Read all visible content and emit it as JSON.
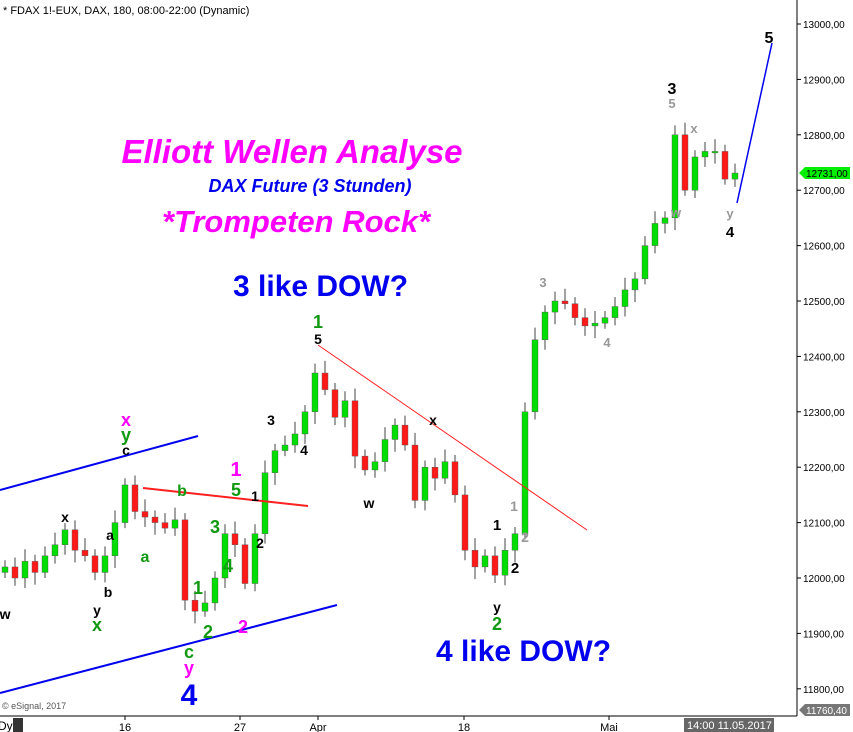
{
  "header": {
    "title": "* FDAX 1!-EUX, DAX, 180, 08:00-22:00 (Dynamic)"
  },
  "footer": {
    "copyright": "© eSignal, 2017",
    "dyn": "Dyn",
    "datetime": "14:00 11.05.2017"
  },
  "annotations": {
    "title": "Elliott Wellen Analyse",
    "subtitle": "DAX Future (3 Stunden)",
    "tagline": "*Trompeten Rock*",
    "note1": "3 like DOW?",
    "note2": "4 like DOW?"
  },
  "colors": {
    "up": "#00dd00",
    "down": "#ff1a1a",
    "magenta": "#ff00ff",
    "blue": "#0000ee",
    "green": "#119911",
    "grey": "#999999",
    "red_line": "#ff2020"
  },
  "wave_labels": [
    "x",
    "y",
    "c",
    "x",
    "a",
    "b",
    "y",
    "x",
    "a",
    "w",
    "b",
    "1",
    "5",
    "1",
    "3",
    "4",
    "1",
    "2",
    "2",
    "2",
    "c",
    "y",
    "4",
    "3",
    "4",
    "1",
    "5",
    "w",
    "x",
    "1",
    "2",
    "y",
    "2",
    "1",
    "2",
    "3",
    "4",
    "3",
    "5",
    "x",
    "w",
    "y",
    "4",
    "5"
  ],
  "chart_data": {
    "type": "candlestick",
    "symbol": "FDAX 1!-EUX",
    "y_ticks": [
      13000,
      12900,
      12800,
      12700,
      12600,
      12500,
      12400,
      12300,
      12200,
      12100,
      12000,
      11900,
      11800
    ],
    "y_tick_labels": [
      "13000,00",
      "12900,00",
      "12800,00",
      "12700,00",
      "12600,00",
      "12500,00",
      "12400,00",
      "12300,00",
      "12200,00",
      "12100,00",
      "12000,00",
      "11900,00",
      "11800,00"
    ],
    "ylim": [
      11760.4,
      13040
    ],
    "last_price": "12731,00",
    "low_marker": "11760,40",
    "x_tick_labels": [
      "16",
      "27",
      "Apr",
      "18",
      "Mai"
    ],
    "closes": [
      12020,
      12000,
      12030,
      12010,
      12040,
      12060,
      12087,
      12050,
      12040,
      12010,
      12040,
      12100,
      12168,
      12120,
      12110,
      12100,
      12090,
      12105,
      11960,
      11940,
      11955,
      12000,
      12080,
      12060,
      11990,
      12080,
      12190,
      12230,
      12240,
      12260,
      12300,
      12370,
      12340,
      12290,
      12320,
      12220,
      12195,
      12210,
      12250,
      12276,
      12240,
      12140,
      12200,
      12180,
      12210,
      12150,
      12050,
      12020,
      12040,
      12005,
      12050,
      12080,
      12300,
      12430,
      12480,
      12500,
      12495,
      12470,
      12455,
      12460,
      12470,
      12490,
      12520,
      12540,
      12600,
      12640,
      12650,
      12800,
      12700,
      12760,
      12770,
      12770,
      12720,
      12731
    ]
  }
}
